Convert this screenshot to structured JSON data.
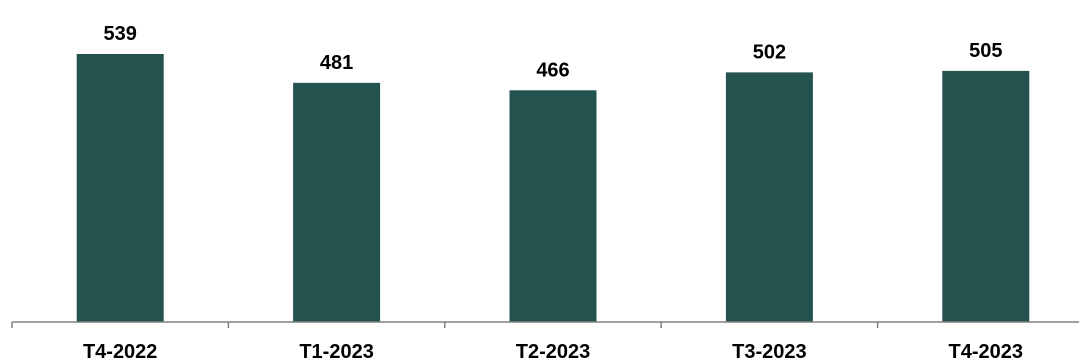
{
  "chart_data": {
    "type": "bar",
    "categories": [
      "T4-2022",
      "T1-2023",
      "T2-2023",
      "T3-2023",
      "T4-2023"
    ],
    "values": [
      539,
      481,
      466,
      502,
      505
    ],
    "data_labels": [
      "539",
      "481",
      "466",
      "502",
      "505"
    ],
    "ylim": [
      0,
      600
    ],
    "grid": false,
    "legend": "none",
    "bar_color": "#23524f",
    "axis_color": "#808080"
  }
}
